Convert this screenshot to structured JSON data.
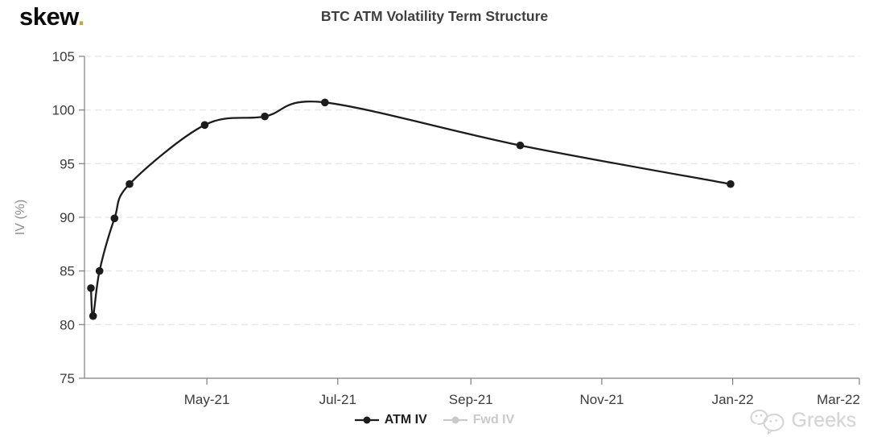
{
  "header": {
    "logo_text": "skew",
    "logo_dot": "."
  },
  "watermark": {
    "text": "Greeks"
  },
  "colors": {
    "line": "#1c1c1c",
    "grid": "#e7e7e7",
    "axis": "#7f7f7f",
    "tick_label": "#3b3b3b",
    "axis_title": "#8e8e8e",
    "title": "#3f3f3f",
    "legend_enabled": "#1f1f1f",
    "legend_disabled": "#c9c9c9",
    "watermark": "#d4d4d4",
    "logo_dot": "#d2a42c"
  },
  "chart_data": {
    "type": "line",
    "title": "BTC ATM Volatility Term Structure",
    "xlabel": "",
    "ylabel": "IV (%)",
    "ylim": [
      75,
      105
    ],
    "ytick_values": [
      75,
      80,
      85,
      90,
      95,
      100,
      105
    ],
    "x_unit": "days since 01-Mar-2021",
    "x_domain_days": [
      4,
      365
    ],
    "xticks": [
      {
        "label": "May-21",
        "t": 61
      },
      {
        "label": "Jul-21",
        "t": 122
      },
      {
        "label": "Sep-21",
        "t": 184
      },
      {
        "label": "Nov-21",
        "t": 245
      },
      {
        "label": "Jan-22",
        "t": 306
      },
      {
        "label": "Mar-22",
        "t": 365
      }
    ],
    "grid": {
      "horizontal": true,
      "vertical": false,
      "style": "dashed"
    },
    "legend_position": "bottom-center",
    "series": [
      {
        "name": "ATM IV",
        "color": "#1c1c1c",
        "enabled": true,
        "points": [
          {
            "date": "08-Mar-21",
            "t": 7,
            "iv": 83.4
          },
          {
            "date": "09-Mar-21",
            "t": 8,
            "iv": 80.8
          },
          {
            "date": "12-Mar-21",
            "t": 11,
            "iv": 85.0
          },
          {
            "date": "19-Mar-21",
            "t": 18,
            "iv": 89.9
          },
          {
            "date": "26-Mar-21",
            "t": 25,
            "iv": 93.1
          },
          {
            "date": "30-Apr-21",
            "t": 60,
            "iv": 98.6
          },
          {
            "date": "28-May-21",
            "t": 88,
            "iv": 99.4
          },
          {
            "date": "25-Jun-21",
            "t": 116,
            "iv": 100.7
          },
          {
            "date": "24-Sep-21",
            "t": 207,
            "iv": 96.7
          },
          {
            "date": "31-Dec-21",
            "t": 305,
            "iv": 93.1
          }
        ]
      },
      {
        "name": "Fwd IV",
        "color": "#c9c9c9",
        "enabled": false,
        "points": []
      }
    ]
  }
}
